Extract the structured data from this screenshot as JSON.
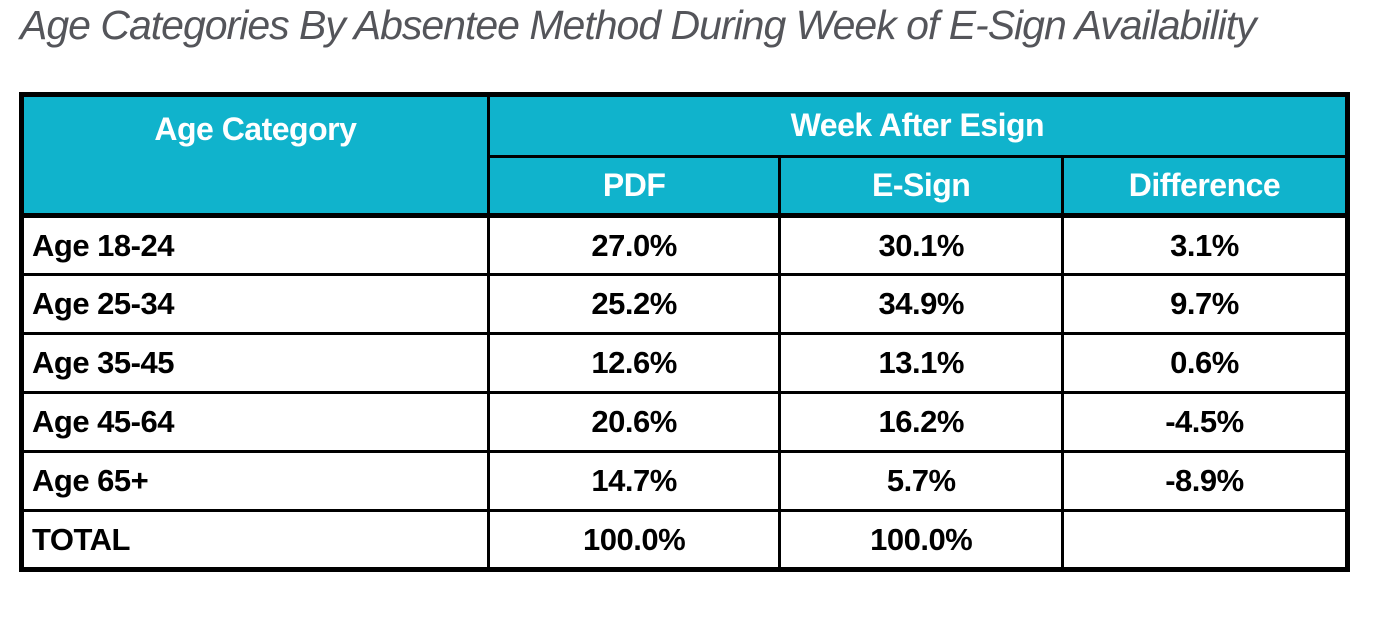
{
  "title": "Age Categories By Absentee Method During Week of E-Sign Availability",
  "colors": {
    "header_bg": "#10b3cc",
    "header_text": "#ffffff",
    "border_color": "#000000",
    "title_text": "#54555a",
    "cell_text": "#000000",
    "page_bg": "#ffffff"
  },
  "table": {
    "corner_header": "Age Category",
    "group_header": "Week After Esign",
    "sub_headers": [
      "PDF",
      "E-Sign",
      "Difference"
    ],
    "rows": [
      {
        "label": "Age 18-24",
        "pdf": "27.0%",
        "esign": "30.1%",
        "difference": "3.1%"
      },
      {
        "label": "Age 25-34",
        "pdf": "25.2%",
        "esign": "34.9%",
        "difference": "9.7%"
      },
      {
        "label": "Age 35-45",
        "pdf": "12.6%",
        "esign": "13.1%",
        "difference": "0.6%"
      },
      {
        "label": "Age 45-64",
        "pdf": "20.6%",
        "esign": "16.2%",
        "difference": "-4.5%"
      },
      {
        "label": "Age 65+",
        "pdf": "14.7%",
        "esign": "5.7%",
        "difference": "-8.9%"
      },
      {
        "label": "TOTAL",
        "pdf": "100.0%",
        "esign": "100.0%",
        "difference": ""
      }
    ]
  },
  "chart_data": {
    "type": "table",
    "title": "Age Categories By Absentee Method During Week of E-Sign Availability",
    "group_header": "Week After Esign",
    "columns": [
      "Age Category",
      "PDF",
      "E-Sign",
      "Difference"
    ],
    "units": "percent",
    "rows": [
      [
        "Age 18-24",
        27.0,
        30.1,
        3.1
      ],
      [
        "Age 25-34",
        25.2,
        34.9,
        9.7
      ],
      [
        "Age 35-45",
        12.6,
        13.1,
        0.6
      ],
      [
        "Age 45-64",
        20.6,
        16.2,
        -4.5
      ],
      [
        "Age 65+",
        14.7,
        5.7,
        -8.9
      ],
      [
        "TOTAL",
        100.0,
        100.0,
        null
      ]
    ]
  }
}
